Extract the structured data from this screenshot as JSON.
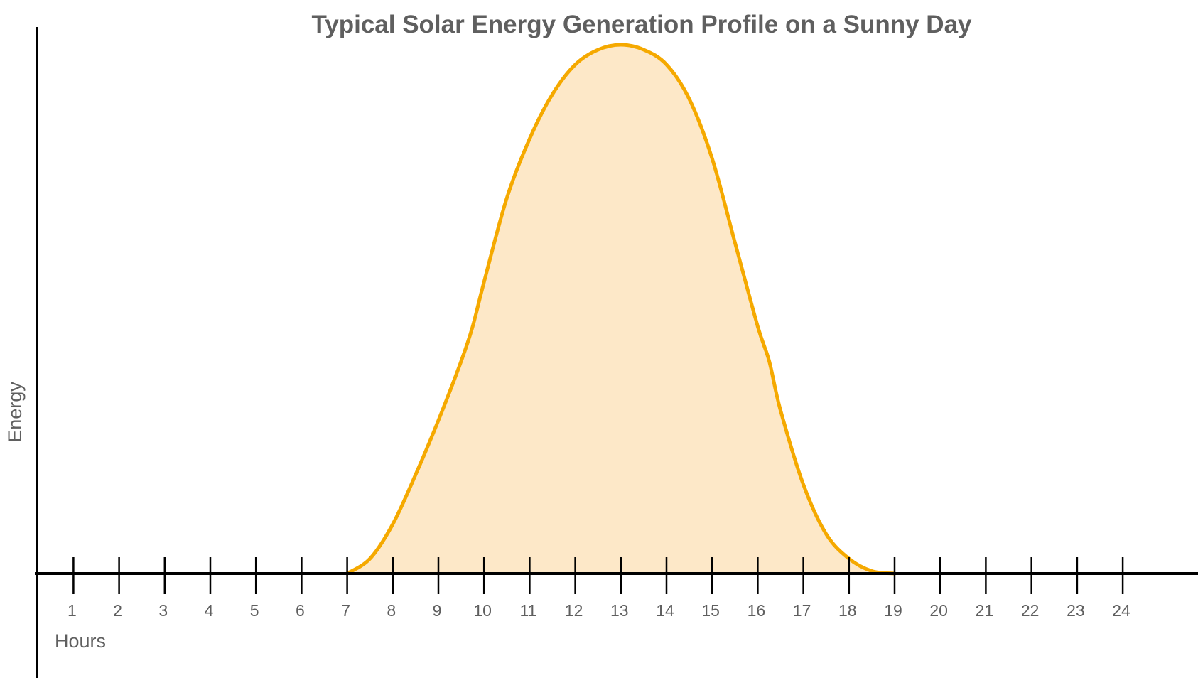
{
  "chart_data": {
    "type": "area",
    "title": "Typical Solar Energy Generation Profile on a Sunny Day",
    "xlabel": "Hours",
    "ylabel": "Energy",
    "x_ticks": [
      1,
      2,
      3,
      4,
      5,
      6,
      7,
      8,
      9,
      10,
      11,
      12,
      13,
      14,
      15,
      16,
      17,
      18,
      19,
      20,
      21,
      22,
      23,
      24
    ],
    "xlim": [
      0.2,
      25.65
    ],
    "ylim": [
      0,
      1.06
    ],
    "y_ticks_shown": false,
    "grid": false,
    "legend": "none",
    "series": [
      {
        "x": [
          7,
          7.5,
          8,
          8.5,
          9,
          9.5,
          9.75,
          10,
          10.5,
          11,
          11.5,
          12,
          12.5,
          13,
          13.5,
          14,
          14.5,
          15,
          15.5,
          16,
          16.25,
          16.5,
          17,
          17.5,
          18,
          18.5,
          19
        ],
        "y": [
          0,
          0.03,
          0.1,
          0.2,
          0.31,
          0.43,
          0.5,
          0.59,
          0.76,
          0.88,
          0.97,
          1.03,
          1.06,
          1.07,
          1.06,
          1.03,
          0.96,
          0.84,
          0.67,
          0.5,
          0.43,
          0.33,
          0.18,
          0.08,
          0.03,
          0.005,
          0
        ]
      }
    ],
    "colors": {
      "line": "#F5A900",
      "fill": "#FDE8C8",
      "axis": "#000000",
      "text": "#5f5f5f"
    }
  }
}
